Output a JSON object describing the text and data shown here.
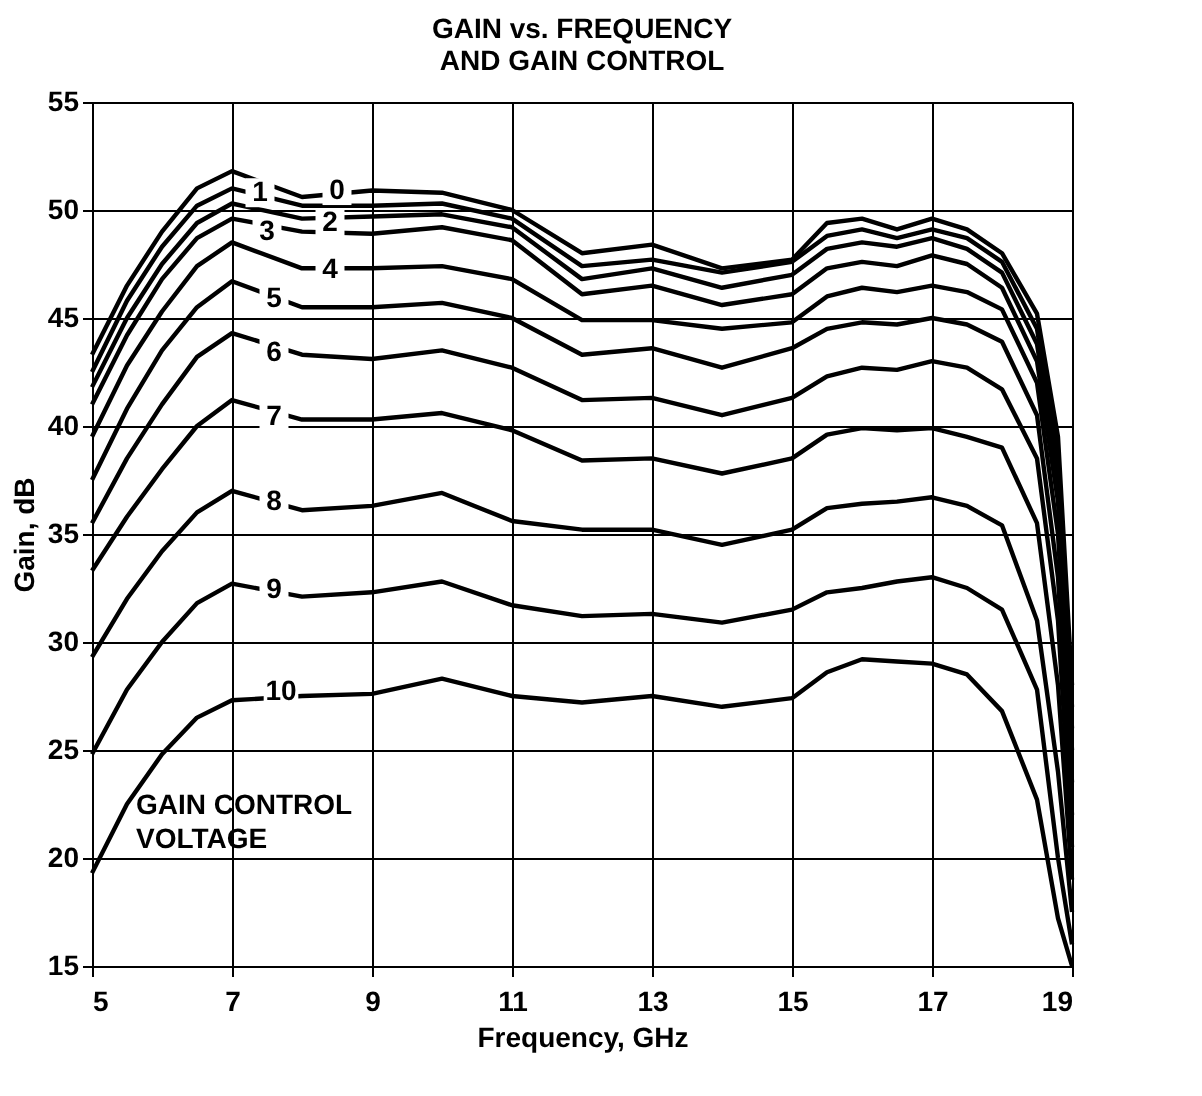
{
  "chart_data": {
    "type": "line",
    "title": "GAIN vs. FREQUENCY\nAND GAIN CONTROL",
    "xlabel": "Frequency, GHz",
    "ylabel": "Gain, dB",
    "x": [
      5,
      5.5,
      6,
      6.5,
      7,
      8,
      9,
      10,
      11,
      12,
      13,
      14,
      15,
      15.5,
      16,
      16.5,
      17,
      17.5,
      18,
      18.5,
      18.8,
      19
    ],
    "series": [
      {
        "color": "#000000",
        "values": [
          43.3,
          46.5,
          49,
          51,
          51.8,
          50.6,
          50.9,
          50.8,
          50,
          48.0,
          48.4,
          47.3,
          47.7,
          49.4,
          49.6,
          49.1,
          49.6,
          49.1,
          48.0,
          45.2,
          39.5,
          28
        ]
      },
      {
        "color": "#000000",
        "values": [
          42.5,
          45.8,
          48.3,
          50.2,
          51.0,
          50.2,
          50.2,
          50.3,
          49.6,
          47.4,
          47.7,
          47.1,
          47.6,
          48.8,
          49.1,
          48.7,
          49.1,
          48.7,
          47.6,
          44.5,
          38.5,
          27
        ]
      },
      {
        "color": "#000000",
        "values": [
          41.8,
          45,
          47.5,
          49.4,
          50.3,
          49.6,
          49.7,
          49.8,
          49.2,
          46.8,
          47.3,
          46.4,
          47.0,
          48.2,
          48.5,
          48.3,
          48.7,
          48.2,
          47.1,
          43.8,
          37.5,
          26
        ]
      },
      {
        "color": "#000000",
        "values": [
          41,
          44.2,
          46.8,
          48.7,
          49.6,
          49.0,
          48.9,
          49.2,
          48.6,
          46.1,
          46.5,
          45.6,
          46.1,
          47.3,
          47.6,
          47.4,
          47.9,
          47.5,
          46.4,
          43,
          36.5,
          25
        ]
      },
      {
        "color": "#000000",
        "values": [
          39.5,
          42.8,
          45.3,
          47.4,
          48.5,
          47.3,
          47.3,
          47.4,
          46.8,
          44.9,
          44.9,
          44.5,
          44.8,
          46.0,
          46.4,
          46.2,
          46.5,
          46.2,
          45.4,
          42,
          35,
          23.5
        ]
      },
      {
        "color": "#000000",
        "values": [
          37.5,
          40.8,
          43.5,
          45.5,
          46.7,
          45.5,
          45.5,
          45.7,
          45.0,
          43.3,
          43.6,
          42.7,
          43.6,
          44.5,
          44.8,
          44.7,
          45.0,
          44.7,
          43.9,
          40.5,
          33,
          22
        ]
      },
      {
        "color": "#000000",
        "values": [
          35.5,
          38.5,
          41,
          43.2,
          44.3,
          43.3,
          43.1,
          43.5,
          42.7,
          41.2,
          41.3,
          40.5,
          41.3,
          42.3,
          42.7,
          42.6,
          43.0,
          42.7,
          41.7,
          38.5,
          31,
          20.5
        ]
      },
      {
        "color": "#000000",
        "values": [
          33.3,
          35.8,
          38,
          40,
          41.2,
          40.3,
          40.3,
          40.6,
          39.8,
          38.4,
          38.5,
          37.8,
          38.5,
          39.6,
          39.9,
          39.8,
          39.9,
          39.5,
          39.0,
          35.5,
          28,
          19
        ]
      },
      {
        "color": "#000000",
        "values": [
          29.3,
          32,
          34.2,
          36,
          37,
          36.1,
          36.3,
          36.9,
          35.6,
          35.2,
          35.2,
          34.5,
          35.2,
          36.2,
          36.4,
          36.5,
          36.7,
          36.3,
          35.4,
          31,
          24,
          17.5
        ]
      },
      {
        "color": "#000000",
        "values": [
          24.8,
          27.8,
          30,
          31.8,
          32.7,
          32.1,
          32.3,
          32.8,
          31.7,
          31.2,
          31.3,
          30.9,
          31.5,
          32.3,
          32.5,
          32.8,
          33.0,
          32.5,
          31.5,
          27.8,
          20,
          16
        ]
      },
      {
        "color": "#000000",
        "values": [
          19.3,
          22.5,
          24.8,
          26.5,
          27.3,
          27.5,
          27.6,
          28.3,
          27.5,
          27.2,
          27.5,
          27,
          27.4,
          28.6,
          29.2,
          29.1,
          29.0,
          28.5,
          26.8,
          22.7,
          17.2,
          15
        ]
      }
    ],
    "annotations": [
      {
        "text": "0",
        "x": 8.5,
        "y": 50.9
      },
      {
        "text": "1",
        "x": 7.4,
        "y": 50.8
      },
      {
        "text": "2",
        "x": 8.4,
        "y": 49.4
      },
      {
        "text": "3",
        "x": 7.5,
        "y": 49.0
      },
      {
        "text": "4",
        "x": 8.4,
        "y": 47.2
      },
      {
        "text": "5",
        "x": 7.6,
        "y": 45.9
      },
      {
        "text": "6",
        "x": 7.6,
        "y": 43.4
      },
      {
        "text": "7",
        "x": 7.6,
        "y": 40.4
      },
      {
        "text": "8",
        "x": 7.6,
        "y": 36.5
      },
      {
        "text": "9",
        "x": 7.6,
        "y": 32.4
      },
      {
        "text": "10",
        "x": 7.7,
        "y": 27.7
      },
      "GAIN CONTROL\nVOLTAGE"
    ],
    "xlim": [
      5,
      19
    ],
    "xticks": [
      5,
      7,
      9,
      11,
      13,
      15,
      17,
      19
    ],
    "ylim": [
      15,
      55
    ],
    "yticks": [
      15,
      20,
      25,
      30,
      35,
      40,
      45,
      50,
      55
    ],
    "grid": true,
    "marker": "none",
    "line_style": "solid"
  }
}
